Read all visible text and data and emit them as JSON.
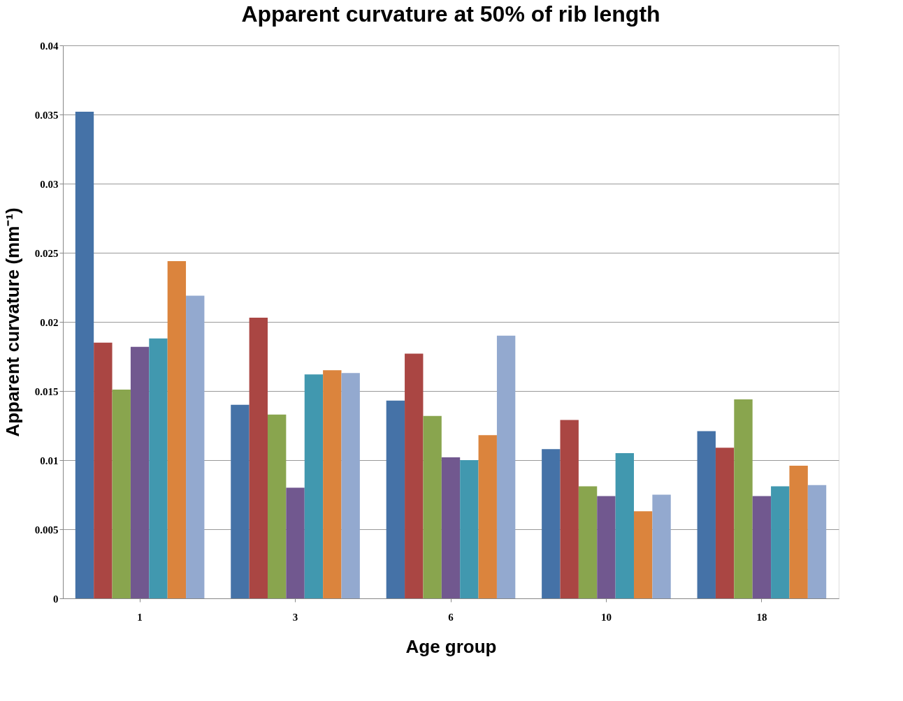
{
  "chart_data": {
    "type": "bar",
    "title": "Apparent curvature at 50% of rib length",
    "xlabel": "Age group",
    "ylabel": "Apparent curvature (mm⁻¹)",
    "categories": [
      "1",
      "3",
      "6",
      "10",
      "18"
    ],
    "series": [
      {
        "color": "#4572a7",
        "values": [
          0.0352,
          0.014,
          0.0143,
          0.0108,
          0.0121
        ]
      },
      {
        "color": "#aa4643",
        "values": [
          0.0185,
          0.0203,
          0.0177,
          0.0129,
          0.0109
        ]
      },
      {
        "color": "#89a54e",
        "values": [
          0.0151,
          0.0133,
          0.0132,
          0.0081,
          0.0144
        ]
      },
      {
        "color": "#71588f",
        "values": [
          0.0182,
          0.008,
          0.0102,
          0.0074,
          0.0074
        ]
      },
      {
        "color": "#4198af",
        "values": [
          0.0188,
          0.0162,
          0.01,
          0.0105,
          0.0081
        ]
      },
      {
        "color": "#db843d",
        "values": [
          0.0244,
          0.0165,
          0.0118,
          0.0063,
          0.0096
        ]
      },
      {
        "color": "#93a9cf",
        "values": [
          0.0219,
          0.0163,
          0.019,
          0.0075,
          0.0082
        ]
      }
    ],
    "ylim": [
      0,
      0.04
    ],
    "yticks": [
      0,
      0.005,
      0.01,
      0.015,
      0.02,
      0.025,
      0.03,
      0.035,
      0.04
    ],
    "grid": "y"
  }
}
